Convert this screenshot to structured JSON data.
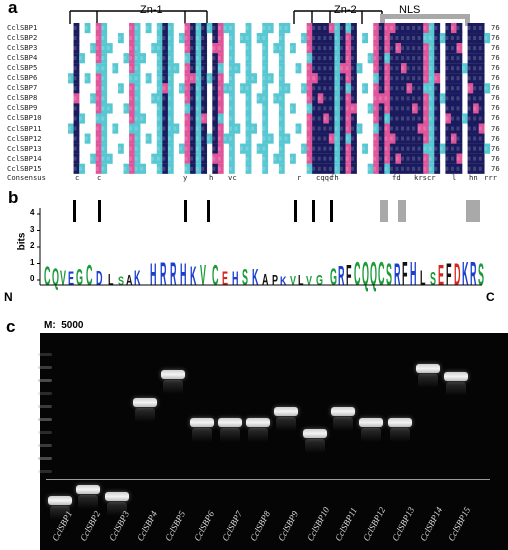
{
  "panels": {
    "a": "a",
    "b": "b",
    "c": "c"
  },
  "alignment": {
    "domains": [
      {
        "label": "Zn-1"
      },
      {
        "label": "Zn-2"
      },
      {
        "label": "NLS"
      }
    ],
    "sequences": [
      {
        "name": "CclSBP1",
        "length": "76"
      },
      {
        "name": "CclSBP2",
        "length": "76"
      },
      {
        "name": "CclSBP3",
        "length": "76"
      },
      {
        "name": "CclSBP4",
        "length": "76"
      },
      {
        "name": "CclSBP5",
        "length": "76"
      },
      {
        "name": "CclSBP6",
        "length": "76"
      },
      {
        "name": "CclSBP7",
        "length": "76"
      },
      {
        "name": "CclSBP8",
        "length": "76"
      },
      {
        "name": "CclSBP9",
        "length": "76"
      },
      {
        "name": "CclSBP10",
        "length": "76"
      },
      {
        "name": "CclSBP11",
        "length": "76"
      },
      {
        "name": "CclSBP12",
        "length": "76"
      },
      {
        "name": "CclSBP13",
        "length": "76"
      },
      {
        "name": "CclSBP14",
        "length": "76"
      },
      {
        "name": "CclSBP15",
        "length": "76"
      }
    ],
    "consensus_label": "Consensus",
    "consensus_marks": [
      "c",
      "c",
      "y",
      "h",
      "vc",
      "r",
      "cqqc",
      "fh",
      "fd",
      "krscr",
      "l",
      "hn",
      "rrr"
    ],
    "colors": {
      "identical": "#1a1a5e",
      "high": "#e0549a",
      "medium": "#57c7d2",
      "bg": "#ffffff"
    }
  },
  "logo": {
    "yaxis_label": "bits",
    "yticks": [
      "0",
      "1",
      "2",
      "3",
      "4"
    ],
    "n_terminus": "N",
    "c_terminus": "C",
    "colors": {
      "green": "#1c9b3a",
      "blue": "#1b3fcf",
      "red": "#d8261d",
      "black": "#111111",
      "purple": "#a43ea0"
    }
  },
  "gel": {
    "marker_label": "M:  5000",
    "lanes": [
      {
        "name": "CclSBP1",
        "band": 0.77
      },
      {
        "name": "CclSBP2",
        "band": 0.72
      },
      {
        "name": "CclSBP3",
        "band": 0.75
      },
      {
        "name": "CclSBP4",
        "band": 0.32
      },
      {
        "name": "CclSBP5",
        "band": 0.19
      },
      {
        "name": "CclSBP6",
        "band": 0.41
      },
      {
        "name": "CclSBP7",
        "band": 0.41
      },
      {
        "name": "CclSBP8",
        "band": 0.41
      },
      {
        "name": "CclSBP9",
        "band": 0.36
      },
      {
        "name": "CclSBP10",
        "band": 0.46
      },
      {
        "name": "CclSBP11",
        "band": 0.36
      },
      {
        "name": "CclSBP12",
        "band": 0.41
      },
      {
        "name": "CclSBP13",
        "band": 0.41
      },
      {
        "name": "CclSBP14",
        "band": 0.16
      },
      {
        "name": "CclSBP15",
        "band": 0.2
      }
    ]
  }
}
